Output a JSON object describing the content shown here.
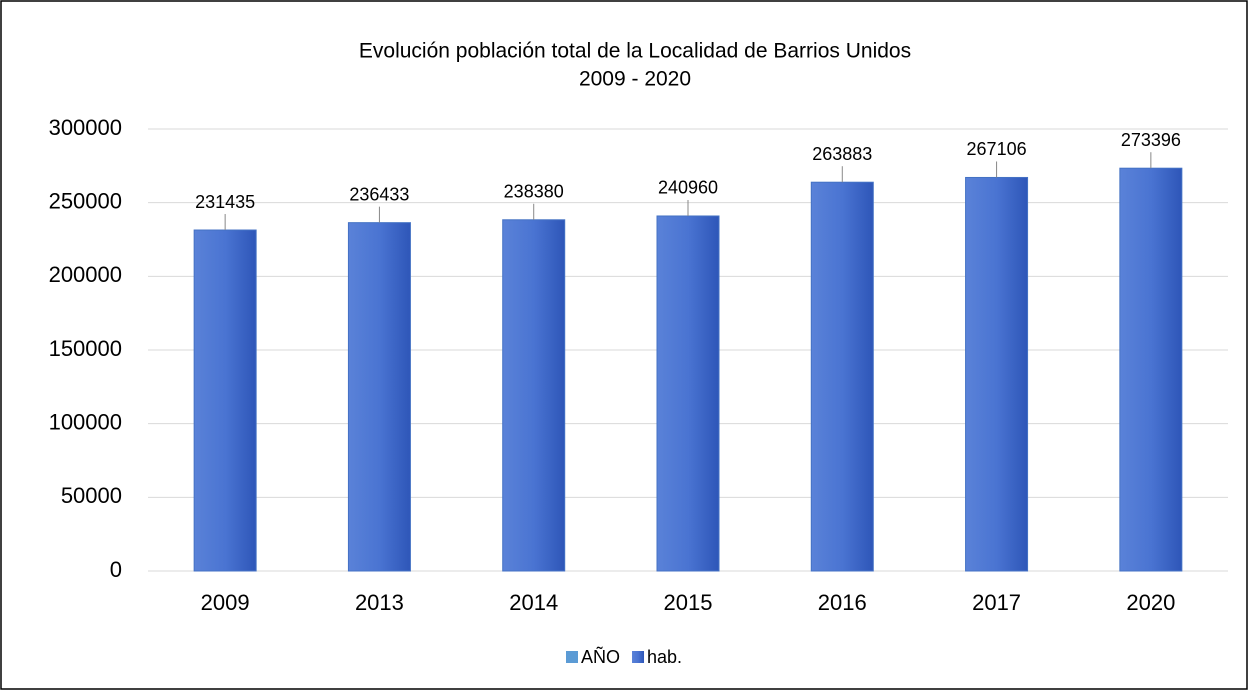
{
  "chart_data": {
    "type": "bar",
    "title": "Evolución población total de la Localidad de Barrios Unidos",
    "subtitle": "2009 - 2020",
    "categories": [
      "2009",
      "2013",
      "2014",
      "2015",
      "2016",
      "2017",
      "2020"
    ],
    "series": [
      {
        "name": "AÑO",
        "color": "#5b9bd5",
        "values": [
          null,
          null,
          null,
          null,
          null,
          null,
          null
        ]
      },
      {
        "name": "hab.",
        "color": "#4472c4",
        "values": [
          231435,
          236433,
          238380,
          240960,
          263883,
          267106,
          273396
        ]
      }
    ],
    "ylim": [
      0,
      300000
    ],
    "yticks": [
      0,
      50000,
      100000,
      150000,
      200000,
      250000,
      300000
    ],
    "grid": true
  }
}
